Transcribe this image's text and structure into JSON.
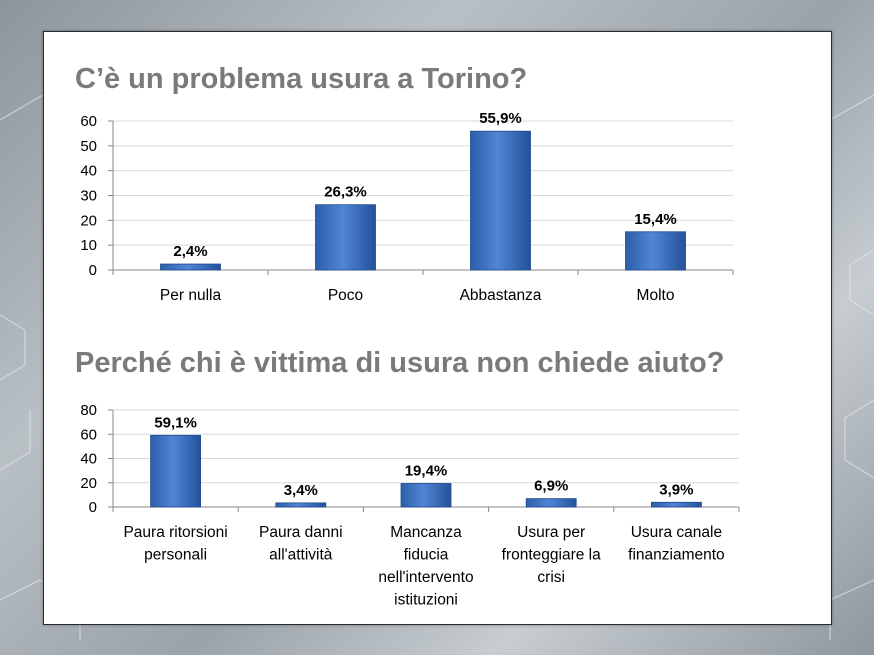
{
  "chart_data": [
    {
      "type": "bar",
      "title": "C’è un problema usura a Torino?",
      "categories": [
        "Per nulla",
        "Poco",
        "Abbastanza",
        "Molto"
      ],
      "values": [
        2.4,
        26.3,
        55.9,
        15.4
      ],
      "data_labels": [
        "2,4%",
        "26,3%",
        "55,9%",
        "15,4%"
      ],
      "y_ticks": [
        "0",
        "10",
        "20",
        "30",
        "40",
        "50",
        "60"
      ],
      "ylim": [
        0,
        60
      ],
      "grid": true,
      "color": "#3a6fc0"
    },
    {
      "type": "bar",
      "title": "Perché chi è vittima di usura non chiede aiuto?",
      "categories": [
        [
          "Paura ritorsioni",
          "personali"
        ],
        [
          "Paura danni",
          "all'attività"
        ],
        [
          "Mancanza",
          "fiducia",
          "nell'intervento",
          "istituzioni"
        ],
        [
          "Usura per",
          "fronteggiare la",
          "crisi"
        ],
        [
          "Usura canale",
          "finanziamento"
        ]
      ],
      "values": [
        59.1,
        3.4,
        19.4,
        6.9,
        3.9
      ],
      "data_labels": [
        "59,1%",
        "3,4%",
        "19,4%",
        "6,9%",
        "3,9%"
      ],
      "y_ticks": [
        "0",
        "20",
        "40",
        "60",
        "80"
      ],
      "ylim": [
        0,
        80
      ],
      "grid": true,
      "color": "#3a6fc0"
    }
  ]
}
